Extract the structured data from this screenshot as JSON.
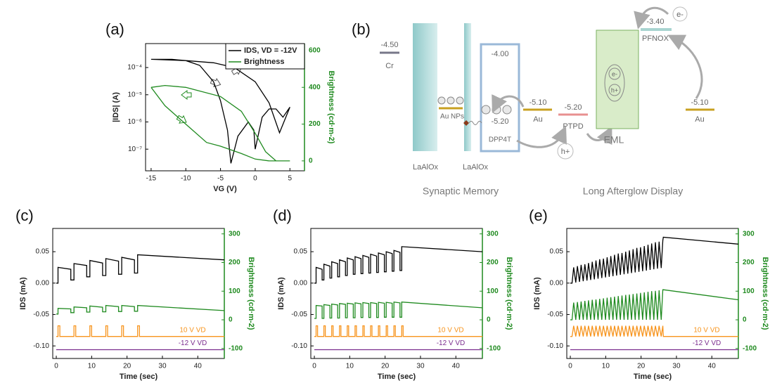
{
  "chart_data": [
    {
      "type": "line",
      "label": "(a)",
      "log": true,
      "legend": "upper right",
      "xlabel": "VG (V)",
      "ylabel": "|IDS| (A)",
      "y2label": "Brightness (cd·m-2)",
      "xlim": [
        -15.8,
        7.1
      ],
      "xticks": [
        -15,
        -10,
        -5,
        0,
        5
      ],
      "ylim": [
        1.6e-08,
        0.00076
      ],
      "yticks": [
        {
          "value": 1e-07,
          "label": "10⁻⁷"
        },
        {
          "value": 1e-06,
          "label": "10⁻⁶"
        },
        {
          "value": 1e-05,
          "label": "10⁻⁵"
        },
        {
          "value": 0.0001,
          "label": "10⁻⁴"
        }
      ],
      "y2lim": [
        -54,
        638
      ],
      "y2ticks": [
        0,
        200,
        400,
        600
      ],
      "y2color": "#1f8a1f",
      "series": [
        {
          "name": "IDS, VD = -12V",
          "color": "#000000",
          "x": [
            -15,
            -12,
            -10,
            -8,
            -6,
            -5,
            -4,
            -3.5,
            -2.5,
            -1,
            -0.2,
            0,
            1,
            2,
            3,
            4,
            5,
            3.5,
            2,
            0,
            -3,
            -6,
            -10,
            -15
          ],
          "values": [
            0.0002,
            0.0002,
            0.00018,
            0.00012,
            3e-05,
            6e-06,
            5e-07,
            3e-08,
            3e-07,
            1e-06,
            5e-07,
            1e-07,
            1.5e-06,
            3e-06,
            3e-06,
            1.5e-06,
            3.5e-06,
            4e-07,
            5e-06,
            3e-05,
            0.0001,
            0.00015,
            0.00018,
            0.0002
          ]
        },
        {
          "name": "Brightness",
          "color": "#1f8a1f",
          "axis": "y2",
          "x": [
            -15,
            -13,
            -10,
            -7,
            -5,
            -2,
            0,
            2,
            5,
            3,
            1.5,
            0,
            -2,
            -5,
            -10,
            -13,
            -15
          ],
          "values": [
            400,
            300,
            200,
            100,
            80,
            40,
            10,
            0,
            0,
            0,
            50,
            150,
            270,
            350,
            400,
            410,
            400
          ]
        }
      ]
    },
    {
      "type": "line",
      "label": "(c)",
      "xlabel": "Time (sec)",
      "ylabel": "IDS (mA)",
      "y2label": "Brightness (cd·m-2)",
      "xlim": [
        -1,
        47.5
      ],
      "xticks": [
        0,
        10,
        20,
        30,
        40
      ],
      "ylim": [
        -0.12,
        0.087
      ],
      "yticks": [
        {
          "value": -0.1,
          "label": "-0.10"
        },
        -0.05,
        {
          "value": 0,
          "label": "0.00"
        },
        0.05
      ],
      "y2lim": [
        -135,
        319
      ],
      "y2ticks": [
        -100,
        0,
        100,
        200,
        300
      ],
      "y2color": "#1f8a1f",
      "annotations": [
        "10 V VD",
        "-12 V VD"
      ],
      "series": [
        {
          "color": "#000000",
          "x": [
            0,
            0.5,
            0.5,
            4.1,
            4.1,
            5,
            5,
            8.6,
            8.6,
            9.5,
            9.5,
            13.1,
            13.1,
            14,
            14,
            17.6,
            17.6,
            18.5,
            18.5,
            22.1,
            22.1,
            23,
            23,
            47.5
          ],
          "values": [
            0,
            0,
            0.025,
            0.022,
            0.005,
            0.005,
            0.031,
            0.028,
            0.01,
            0.01,
            0.036,
            0.032,
            0.012,
            0.012,
            0.039,
            0.035,
            0.014,
            0.014,
            0.041,
            0.037,
            0.016,
            0.016,
            0.045,
            0.037
          ]
        },
        {
          "color": "#1f8a1f",
          "axis": "y2",
          "x": [
            0,
            0.5,
            0.5,
            4.1,
            4.1,
            5,
            5,
            8.6,
            8.6,
            9.5,
            9.5,
            13.1,
            13.1,
            14,
            14,
            17.6,
            17.6,
            18.5,
            18.5,
            22.1,
            22.1,
            23,
            23,
            47.5
          ],
          "values": [
            20,
            20,
            40,
            38,
            25,
            25,
            45,
            42,
            27,
            27,
            48,
            44,
            28,
            28,
            50,
            46,
            29,
            29,
            50,
            46,
            30,
            30,
            50,
            32
          ]
        },
        {
          "color": "#f7941d",
          "x": [
            0,
            0.5,
            0.5,
            1,
            1,
            5,
            5,
            5.5,
            5.5,
            9.5,
            9.5,
            10,
            10,
            14,
            14,
            14.5,
            14.5,
            18.5,
            18.5,
            19,
            19,
            23,
            23,
            23.5,
            23.5,
            47.5
          ],
          "values": [
            -0.085,
            -0.085,
            -0.068,
            -0.068,
            -0.085,
            -0.085,
            -0.068,
            -0.068,
            -0.085,
            -0.085,
            -0.068,
            -0.068,
            -0.085,
            -0.085,
            -0.068,
            -0.068,
            -0.085,
            -0.085,
            -0.068,
            -0.068,
            -0.085,
            -0.085,
            -0.068,
            -0.068,
            -0.085,
            -0.085
          ]
        },
        {
          "color": "#7b2d8e",
          "x": [
            0,
            47.5
          ],
          "values": [
            -0.106,
            -0.106
          ]
        }
      ]
    },
    {
      "type": "line",
      "label": "(d)",
      "xlabel": "Time (sec)",
      "ylabel": "IDS (mA)",
      "y2label": "Brightness (cd·m-2)",
      "xlim": [
        -1,
        47.5
      ],
      "xticks": [
        0,
        10,
        20,
        30,
        40
      ],
      "ylim": [
        -0.12,
        0.087
      ],
      "yticks": [
        {
          "value": -0.1,
          "label": "-0.10"
        },
        -0.05,
        {
          "value": 0,
          "label": "0.00"
        },
        0.05
      ],
      "y2lim": [
        -135,
        319
      ],
      "y2ticks": [
        -100,
        0,
        100,
        200,
        300
      ],
      "y2color": "#1f8a1f",
      "annotations": [
        "10 V VD",
        "-12 V VD"
      ],
      "series": [
        {
          "color": "#000000",
          "x": [
            0,
            0.5,
            0.5,
            2.2,
            2.2,
            2.7,
            2.7,
            4.4,
            4.4,
            4.9,
            4.9,
            6.6,
            6.6,
            7.1,
            7.1,
            8.8,
            8.8,
            9.3,
            9.3,
            11,
            11,
            11.5,
            11.5,
            13.2,
            13.2,
            13.7,
            13.7,
            15.4,
            15.4,
            15.9,
            15.9,
            17.6,
            17.6,
            18.1,
            18.1,
            19.8,
            19.8,
            20.3,
            20.3,
            22,
            22,
            22.5,
            22.5,
            24.2,
            24.2,
            24.7,
            24.7,
            47.5
          ],
          "values": [
            0,
            0,
            0.025,
            0.022,
            0.005,
            0.005,
            0.03,
            0.027,
            0.008,
            0.008,
            0.034,
            0.031,
            0.01,
            0.01,
            0.037,
            0.034,
            0.012,
            0.012,
            0.04,
            0.037,
            0.014,
            0.014,
            0.042,
            0.039,
            0.015,
            0.015,
            0.044,
            0.041,
            0.016,
            0.016,
            0.046,
            0.043,
            0.017,
            0.017,
            0.048,
            0.045,
            0.018,
            0.018,
            0.05,
            0.047,
            0.019,
            0.019,
            0.052,
            0.049,
            0.02,
            0.02,
            0.058,
            0.05
          ]
        },
        {
          "color": "#1f8a1f",
          "axis": "y2",
          "x": [
            0,
            0.5,
            0.5,
            2.2,
            2.2,
            2.7,
            2.7,
            4.4,
            4.4,
            4.9,
            4.9,
            6.6,
            6.6,
            7.1,
            7.1,
            8.8,
            8.8,
            9.3,
            9.3,
            11,
            11,
            11.5,
            11.5,
            13.2,
            13.2,
            13.7,
            13.7,
            15.4,
            15.4,
            15.9,
            15.9,
            17.6,
            17.6,
            18.1,
            18.1,
            19.8,
            19.8,
            20.3,
            20.3,
            22,
            22,
            22.5,
            22.5,
            24.2,
            24.2,
            24.7,
            24.7,
            47.5
          ],
          "values": [
            5,
            5,
            50,
            48,
            5,
            5,
            53,
            50,
            6,
            6,
            55,
            52,
            6,
            6,
            57,
            54,
            7,
            7,
            58,
            55,
            7,
            7,
            59,
            56,
            8,
            8,
            60,
            57,
            8,
            8,
            60,
            57,
            8,
            8,
            61,
            58,
            9,
            9,
            61,
            58,
            9,
            9,
            62,
            59,
            9,
            9,
            62,
            42
          ]
        },
        {
          "color": "#f7941d",
          "x": [
            0,
            0.5,
            0.5,
            0.9,
            0.9,
            2.7,
            2.7,
            3.1,
            3.1,
            4.9,
            4.9,
            5.3,
            5.3,
            7.1,
            7.1,
            7.5,
            7.5,
            9.3,
            9.3,
            9.7,
            9.7,
            11.5,
            11.5,
            11.9,
            11.9,
            13.7,
            13.7,
            14.1,
            14.1,
            15.9,
            15.9,
            16.3,
            16.3,
            18.1,
            18.1,
            18.5,
            18.5,
            20.3,
            20.3,
            20.7,
            20.7,
            22.5,
            22.5,
            22.9,
            22.9,
            24.7,
            24.7,
            25.1,
            25.1,
            47.5
          ],
          "values": [
            -0.085,
            -0.085,
            -0.068,
            -0.068,
            -0.085,
            -0.085,
            -0.068,
            -0.068,
            -0.085,
            -0.085,
            -0.068,
            -0.068,
            -0.085,
            -0.085,
            -0.068,
            -0.068,
            -0.085,
            -0.085,
            -0.068,
            -0.068,
            -0.085,
            -0.085,
            -0.068,
            -0.068,
            -0.085,
            -0.085,
            -0.068,
            -0.068,
            -0.085,
            -0.085,
            -0.068,
            -0.068,
            -0.085,
            -0.085,
            -0.068,
            -0.068,
            -0.085,
            -0.085,
            -0.068,
            -0.068,
            -0.085,
            -0.085,
            -0.068,
            -0.068,
            -0.085,
            -0.085,
            -0.068,
            -0.068,
            -0.085,
            -0.085
          ]
        },
        {
          "color": "#7b2d8e",
          "x": [
            0,
            47.5
          ],
          "values": [
            -0.106,
            -0.106
          ]
        }
      ]
    },
    {
      "type": "line",
      "label": "(e)",
      "xlabel": "Time (sec)",
      "ylabel": "IDS (mA)",
      "y2label": "Brightness (cd·m-2)",
      "xlim": [
        -1,
        47.5
      ],
      "xticks": [
        0,
        10,
        20,
        30,
        40
      ],
      "ylim": [
        -0.12,
        0.087
      ],
      "yticks": [
        {
          "value": -0.1,
          "label": "-0.10"
        },
        -0.05,
        {
          "value": 0,
          "label": "0.00"
        },
        0.05
      ],
      "y2lim": [
        -135,
        319
      ],
      "y2ticks": [
        -100,
        0,
        100,
        200,
        300
      ],
      "y2color": "#1f8a1f",
      "annotations": [
        "10 V VD",
        "-12 V VD"
      ],
      "x": [
        0,
        0.5,
        0.95,
        1.55,
        2.0,
        2.6,
        3.05,
        3.65,
        4.1,
        4.7,
        5.15,
        5.75,
        6.2,
        6.8,
        7.25,
        7.85,
        8.3,
        8.9,
        9.35,
        9.95,
        10.4,
        11,
        11.45,
        12.05,
        12.5,
        13.1,
        13.55,
        14.15,
        14.6,
        15.2,
        15.65,
        16.25,
        16.7,
        17.3,
        17.75,
        18.35,
        18.8,
        19.4,
        19.85,
        20.45,
        20.9,
        21.5,
        21.95,
        22.55,
        23,
        23.6,
        24.05,
        24.65,
        25.1,
        25.7,
        26.15,
        26.3,
        47.5
      ],
      "series": [
        {
          "color": "#000000",
          "values": [
            0,
            0,
            0.025,
            0.001,
            0.027,
            0.002,
            0.029,
            0.003,
            0.03,
            0.004,
            0.032,
            0.005,
            0.034,
            0.006,
            0.036,
            0.007,
            0.038,
            0.008,
            0.039,
            0.009,
            0.041,
            0.01,
            0.043,
            0.011,
            0.045,
            0.012,
            0.047,
            0.013,
            0.048,
            0.014,
            0.05,
            0.015,
            0.052,
            0.016,
            0.054,
            0.017,
            0.056,
            0.018,
            0.057,
            0.019,
            0.059,
            0.02,
            0.061,
            0.021,
            0.063,
            0.022,
            0.065,
            0.023,
            0.066,
            0.024,
            0.068,
            0.073,
            0.062
          ]
        },
        {
          "color": "#1f8a1f",
          "axis": "y2",
          "values": [
            0,
            0,
            60,
            0,
            62,
            0,
            64,
            0,
            66,
            0,
            68,
            0,
            70,
            0,
            71,
            0,
            73,
            0,
            75,
            0,
            77,
            0,
            79,
            0,
            81,
            0,
            83,
            0,
            85,
            0,
            87,
            0,
            88,
            0,
            90,
            0,
            92,
            0,
            94,
            0,
            96,
            0,
            98,
            0,
            100,
            0,
            101,
            0,
            103,
            0,
            105,
            105,
            70
          ]
        },
        {
          "color": "#f7941d",
          "values": [
            -0.085,
            -0.085,
            -0.068,
            -0.085,
            -0.068,
            -0.085,
            -0.068,
            -0.085,
            -0.068,
            -0.085,
            -0.068,
            -0.085,
            -0.068,
            -0.085,
            -0.068,
            -0.085,
            -0.068,
            -0.085,
            -0.068,
            -0.085,
            -0.068,
            -0.085,
            -0.068,
            -0.085,
            -0.068,
            -0.085,
            -0.068,
            -0.085,
            -0.068,
            -0.085,
            -0.068,
            -0.085,
            -0.068,
            -0.085,
            -0.068,
            -0.085,
            -0.068,
            -0.085,
            -0.068,
            -0.085,
            -0.068,
            -0.085,
            -0.068,
            -0.085,
            -0.068,
            -0.085,
            -0.068,
            -0.085,
            -0.068,
            -0.085,
            -0.068,
            -0.085,
            -0.085
          ]
        },
        {
          "color": "#7b2d8e",
          "x": [
            0,
            47.5
          ],
          "values": [
            -0.106,
            -0.106
          ]
        }
      ]
    }
  ],
  "diagram": {
    "label": "(b)",
    "cr": {
      "level": "-4.50",
      "name": "Cr"
    },
    "oxide1": "LaAlOx",
    "oxide2": "LaAlOx",
    "nps": "Au NPs",
    "dpp4t": {
      "lumo": "-4.00",
      "homo": "-5.20",
      "name": "DPP4T"
    },
    "au1": {
      "level": "-5.10",
      "name": "Au"
    },
    "ptpd": {
      "level": "-5.20",
      "name": "PTPD"
    },
    "hole": "h+",
    "eml": "EML",
    "eml_e": "e-",
    "eml_h": "h+",
    "pfnox": {
      "level": "-3.40",
      "name": "PFNOX"
    },
    "electron": "e-",
    "au2": {
      "level": "-5.10",
      "name": "Au"
    },
    "section1": "Synaptic Memory",
    "section2": "Long Afterglow Display"
  }
}
